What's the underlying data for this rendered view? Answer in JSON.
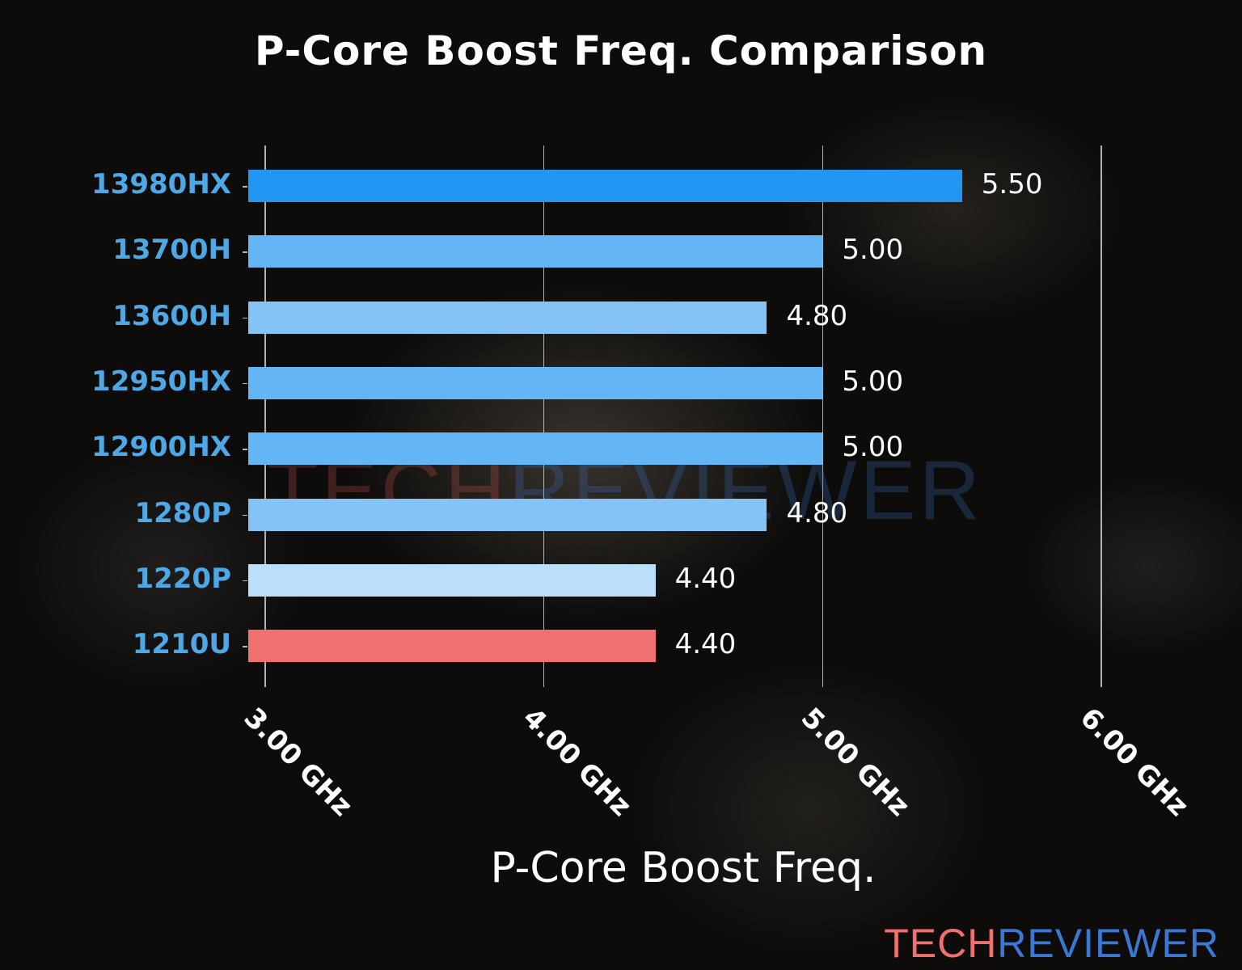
{
  "chart_data": {
    "type": "bar",
    "orientation": "horizontal",
    "title": "P-Core Boost Freq. Comparison",
    "xlabel": "P-Core Boost Freq.",
    "ylabel": "",
    "categories": [
      "13980HX",
      "13700H",
      "13600H",
      "12950HX",
      "12900HX",
      "1280P",
      "1220P",
      "1210U"
    ],
    "values": [
      5.5,
      5.0,
      4.8,
      5.0,
      5.0,
      4.8,
      4.4,
      4.4
    ],
    "value_labels": [
      "5.50",
      "5.00",
      "4.80",
      "5.00",
      "5.00",
      "4.80",
      "4.40",
      "4.40"
    ],
    "bar_colors": [
      "#2196f3",
      "#64b5f6",
      "#85c3f7",
      "#64b5f6",
      "#64b5f6",
      "#85c3f7",
      "#bbdefb",
      "#f07070"
    ],
    "xticks": [
      3.0,
      4.0,
      5.0,
      6.0
    ],
    "xtick_labels": [
      "3.00 GHz",
      "4.00 GHz",
      "5.00 GHz",
      "6.00 GHz"
    ],
    "xlim": [
      2.94,
      6.0
    ],
    "grid": {
      "x": true,
      "y": false
    },
    "legend": null,
    "highlight": {
      "category": "1210U",
      "color": "#f07070"
    }
  },
  "branding": {
    "part1": "TECH",
    "part2": "REVIEWER",
    "color1": "#f07070",
    "color2": "#3a78d4"
  }
}
